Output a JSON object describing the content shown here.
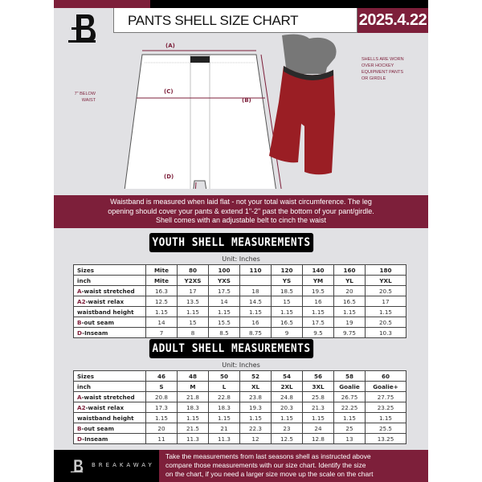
{
  "header": {
    "title": "PANTS SHELL SIZE CHART",
    "date": "2025.4.22"
  },
  "diagram": {
    "label_a": "(A)",
    "label_b": "(B)",
    "label_c": "(C)",
    "label_d": "(D)",
    "below_waist": [
      "7\" BELOW",
      "WAIST"
    ],
    "shells_note": [
      "SHELLS ARE WORN",
      "OVER HOCKEY",
      "EQUIPMENT PANTS",
      "OR GIRDLE"
    ]
  },
  "info_band": [
    "Waistband is measured when laid flat - not your total waist circumference. The leg",
    "opening should cover your pants & extend 1\"-2\" past the bottom of your pant/girdle.",
    "Shell comes with an adjustable belt to cinch the waist"
  ],
  "youth": {
    "title": "YOUTH SHELL MEASUREMENTS",
    "unit": "Unit: Inches",
    "rows": [
      {
        "label": "Sizes",
        "cells": [
          "Mite",
          "80",
          "100",
          "110",
          "120",
          "140",
          "160",
          "180"
        ]
      },
      {
        "label": "inch",
        "cells": [
          "Mite",
          "Y2XS",
          "YXS",
          "",
          "YS",
          "YM",
          "YL",
          "YXL"
        ]
      },
      {
        "prefix": "A",
        "label": "-waist stretched",
        "cells": [
          "16.3",
          "17",
          "17.5",
          "18",
          "18.5",
          "19.5",
          "20",
          "20.5"
        ]
      },
      {
        "prefix": "A2",
        "label": "-waist relax",
        "cells": [
          "12.5",
          "13.5",
          "14",
          "14.5",
          "15",
          "16",
          "16.5",
          "17"
        ]
      },
      {
        "label": "waistband height",
        "cells": [
          "1.15",
          "1.15",
          "1.15",
          "1.15",
          "1.15",
          "1.15",
          "1.15",
          "1.15"
        ]
      },
      {
        "prefix": "B",
        "label": "-out seam",
        "cells": [
          "14",
          "15",
          "15.5",
          "16",
          "16.5",
          "17.5",
          "19",
          "20.5"
        ]
      },
      {
        "prefix": "D",
        "label": "-Inseam",
        "cells": [
          "7",
          "8",
          "8.5",
          "8.75",
          "9",
          "9.5",
          "9.75",
          "10.3"
        ]
      }
    ]
  },
  "adult": {
    "title": "ADULT SHELL MEASUREMENTS",
    "unit": "Unit: Inches",
    "rows": [
      {
        "label": "Sizes",
        "cells": [
          "46",
          "48",
          "50",
          "52",
          "54",
          "56",
          "58",
          "60"
        ]
      },
      {
        "label": "inch",
        "cells": [
          "S",
          "M",
          "L",
          "XL",
          "2XL",
          "3XL",
          "Goalie",
          "Goalie+"
        ]
      },
      {
        "prefix": "A",
        "label": "-waist stretched",
        "cells": [
          "20.8",
          "21.8",
          "22.8",
          "23.8",
          "24.8",
          "25.8",
          "26.75",
          "27.75"
        ]
      },
      {
        "prefix": "A2",
        "label": "-waist relax",
        "cells": [
          "17.3",
          "18.3",
          "18.3",
          "19.3",
          "20.3",
          "21.3",
          "22.25",
          "23.25"
        ]
      },
      {
        "label": "waistband height",
        "cells": [
          "1.15",
          "1.15",
          "1.15",
          "1.15",
          "1.15",
          "1.15",
          "1.15",
          "1.15"
        ]
      },
      {
        "prefix": "B",
        "label": "-out seam",
        "cells": [
          "20",
          "21.5",
          "21",
          "22.3",
          "23",
          "24",
          "25",
          "25.5"
        ]
      },
      {
        "prefix": "D",
        "label": "-Inseam",
        "cells": [
          "11",
          "11.3",
          "11.3",
          "12",
          "12.5",
          "12.8",
          "13",
          "13.25"
        ]
      }
    ]
  },
  "footer": {
    "brand": "BREAKAWAY",
    "text": [
      "Take the measurements from last seasons shell as instructed above",
      "compare those measurements  with our size chart. Identify the size",
      "on the chart, if you need a larger size move up the scale on the chart"
    ]
  },
  "colors": {
    "maroon": "#7d1f3a",
    "black": "#000000",
    "background": "#e1e1e4"
  }
}
